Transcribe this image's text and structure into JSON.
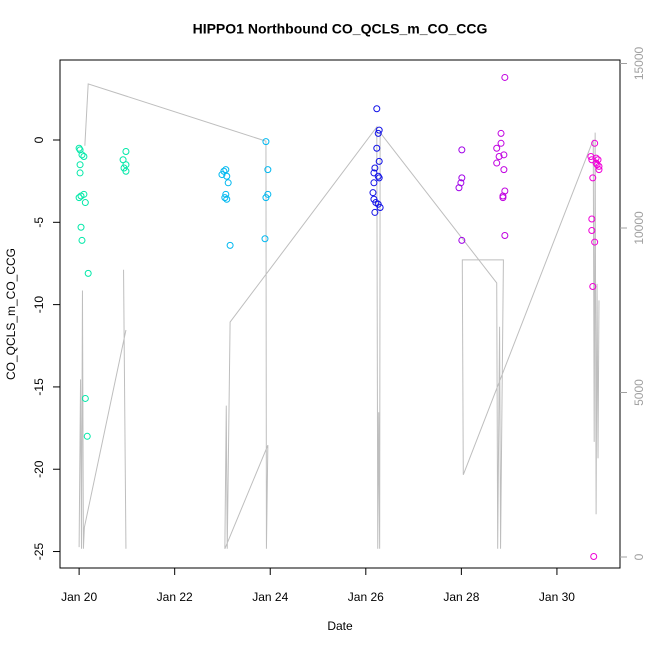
{
  "chart_data": {
    "type": "scatter",
    "title": "HIPPO1 Northbound CO_QCLS_m_CO_CCG",
    "xlabel": "Date",
    "ylabel": "CO_QCLS_m_CO_CCG",
    "xlim": [
      19.6,
      31.32
    ],
    "xticks": [
      {
        "value": 20,
        "label": "Jan 20"
      },
      {
        "value": 22,
        "label": "Jan 22"
      },
      {
        "value": 24,
        "label": "Jan 24"
      },
      {
        "value": 26,
        "label": "Jan 26"
      },
      {
        "value": 28,
        "label": "Jan 28"
      },
      {
        "value": 30,
        "label": "Jan 30"
      }
    ],
    "ylim": [
      -26.0,
      4.86
    ],
    "yticks": [
      0,
      -5,
      -10,
      -15,
      -20,
      -25
    ],
    "y2lim": [
      -334,
      15106
    ],
    "y2ticks": [
      0,
      5000,
      10000,
      15000
    ],
    "series": [
      {
        "color": "#00E8A8",
        "x": [
          20.0,
          20.02,
          20.06,
          20.1,
          20.02,
          20.02,
          20.0,
          20.04,
          20.1,
          20.13,
          20.04,
          20.06,
          20.19,
          20.13,
          20.17,
          20.98,
          20.92,
          20.98,
          20.94,
          20.98
        ],
        "values": [
          -0.5,
          -0.6,
          -0.9,
          -1.0,
          -1.5,
          -2.0,
          -3.5,
          -3.4,
          -3.3,
          -3.8,
          -5.3,
          -6.1,
          -8.1,
          -15.7,
          -18.0,
          -0.7,
          -1.2,
          -1.5,
          -1.7,
          -1.9
        ]
      },
      {
        "color": "#00B8F0",
        "x": [
          23.03,
          23.07,
          22.99,
          23.09,
          23.12,
          23.07,
          23.05,
          23.09,
          23.16,
          23.91,
          23.95,
          23.95,
          23.91,
          23.89
        ],
        "values": [
          -1.9,
          -1.8,
          -2.1,
          -2.2,
          -2.6,
          -3.3,
          -3.5,
          -3.6,
          -6.4,
          -0.1,
          -1.8,
          -3.3,
          -3.5,
          -6.0
        ]
      },
      {
        "color": "#1010E8",
        "x": [
          26.23,
          26.28,
          26.26,
          26.23,
          26.28,
          26.19,
          26.17,
          26.26,
          26.28,
          26.17,
          26.15,
          26.17,
          26.21,
          26.26,
          26.3,
          26.19
        ],
        "values": [
          1.9,
          0.6,
          0.4,
          -0.5,
          -1.3,
          -1.7,
          -2.0,
          -2.2,
          -2.3,
          -2.6,
          -3.2,
          -3.6,
          -3.8,
          -3.9,
          -4.1,
          -4.4
        ]
      },
      {
        "color": "#A000E8",
        "x": [
          28.01,
          28.01,
          27.99,
          27.95,
          28.01
        ],
        "values": [
          -0.6,
          -2.3,
          -2.6,
          -2.9,
          -6.1
        ]
      },
      {
        "color": "#C000E0",
        "x": [
          28.91,
          28.83,
          28.83,
          28.74,
          28.79,
          28.89,
          28.74,
          28.89,
          28.91,
          28.87,
          28.87,
          28.91
        ],
        "values": [
          3.8,
          0.4,
          -0.2,
          -0.5,
          -1.0,
          -0.9,
          -1.4,
          -1.8,
          -3.1,
          -3.4,
          -3.5,
          -5.8
        ]
      },
      {
        "color": "#F000D8",
        "x": [
          30.79,
          30.71,
          30.73,
          30.82,
          30.86,
          30.82,
          30.84,
          30.88,
          30.88,
          30.75,
          30.73,
          30.73,
          30.79,
          30.75,
          30.77
        ],
        "values": [
          -0.2,
          -1.0,
          -1.2,
          -1.1,
          -1.2,
          -1.4,
          -1.5,
          -1.6,
          -1.8,
          -2.3,
          -4.8,
          -5.5,
          -6.2,
          -8.9,
          -25.3
        ]
      },
      {
        "type": "line",
        "axis": "y2",
        "color": "#BEBEBE",
        "x": [
          20.0,
          20.03,
          20.05,
          20.07,
          20.09,
          20.11,
          20.98,
          null,
          20.93,
          20.98,
          null,
          20.12,
          20.19,
          23.91,
          23.92,
          23.95,
          23.05,
          23.08,
          23.1,
          23.16,
          26.23,
          26.25,
          26.27,
          26.29,
          26.3,
          28.74,
          28.76,
          28.8,
          28.82,
          28.88,
          28.02,
          28.02,
          28.04,
          30.76,
          30.78,
          30.8,
          30.82,
          30.84,
          30.86,
          30.88
        ],
        "values": [
          300,
          5400,
          250,
          8100,
          250,
          900,
          6900,
          null,
          8730,
          250,
          null,
          12500,
          14380,
          12640,
          250,
          3400,
          250,
          4600,
          250,
          7140,
          13070,
          250,
          4400,
          250,
          12900,
          8330,
          250,
          7000,
          250,
          9030,
          9030,
          8800,
          2500,
          12680,
          3500,
          12900,
          1300,
          8300,
          3000,
          7800
        ]
      }
    ]
  }
}
